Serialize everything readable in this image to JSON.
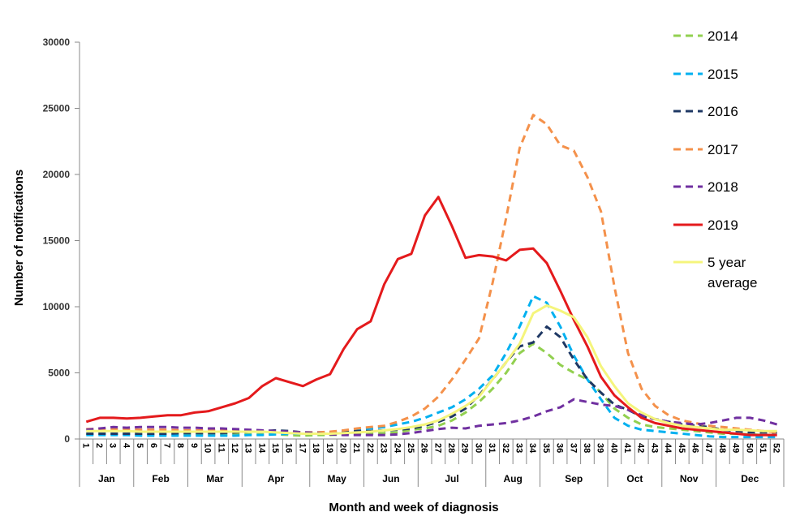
{
  "chart_data": {
    "type": "line",
    "title": "",
    "xlabel": "Month and week of diagnosis",
    "ylabel": "Number of notifications",
    "ylim": [
      0,
      30000
    ],
    "yticks": [
      0,
      5000,
      10000,
      15000,
      20000,
      25000,
      30000
    ],
    "weeks": [
      "1",
      "2",
      "3",
      "4",
      "5",
      "6",
      "7",
      "8",
      "9",
      "10",
      "11",
      "12",
      "13",
      "14",
      "15",
      "16",
      "17",
      "18",
      "19",
      "20",
      "21",
      "22",
      "23",
      "24",
      "25",
      "26",
      "27",
      "28",
      "29",
      "30",
      "31",
      "32",
      "33",
      "34",
      "35",
      "36",
      "37",
      "38",
      "39",
      "40",
      "41",
      "42",
      "43",
      "44",
      "45",
      "46",
      "47",
      "48",
      "49",
      "50",
      "51",
      "52"
    ],
    "months": [
      {
        "label": "Jan",
        "start": 1,
        "end": 4
      },
      {
        "label": "Feb",
        "start": 5,
        "end": 8
      },
      {
        "label": "Mar",
        "start": 9,
        "end": 12
      },
      {
        "label": "Apr",
        "start": 13,
        "end": 17
      },
      {
        "label": "May",
        "start": 18,
        "end": 21
      },
      {
        "label": "Jun",
        "start": 22,
        "end": 25
      },
      {
        "label": "Jul",
        "start": 26,
        "end": 30
      },
      {
        "label": "Aug",
        "start": 31,
        "end": 34
      },
      {
        "label": "Sep",
        "start": 35,
        "end": 39
      },
      {
        "label": "Oct",
        "start": 40,
        "end": 43
      },
      {
        "label": "Nov",
        "start": 44,
        "end": 47
      },
      {
        "label": "Dec",
        "start": 48,
        "end": 52
      }
    ],
    "series": [
      {
        "name": "2014",
        "color": "#92d050",
        "dash": true,
        "values": [
          400,
          400,
          400,
          400,
          350,
          350,
          350,
          350,
          350,
          350,
          350,
          350,
          350,
          350,
          350,
          300,
          250,
          300,
          300,
          350,
          400,
          400,
          450,
          500,
          700,
          800,
          1000,
          1400,
          2000,
          2800,
          3800,
          5000,
          6500,
          7200,
          6500,
          5600,
          5000,
          4500,
          3500,
          2300,
          1600,
          1100,
          900,
          800,
          700,
          600,
          500,
          400,
          400,
          350,
          300,
          300
        ]
      },
      {
        "name": "2015",
        "color": "#00b0f0",
        "dash": true,
        "values": [
          300,
          300,
          300,
          300,
          250,
          250,
          250,
          250,
          250,
          250,
          250,
          250,
          300,
          300,
          350,
          400,
          400,
          450,
          500,
          600,
          700,
          800,
          900,
          1100,
          1300,
          1600,
          2000,
          2400,
          3000,
          3800,
          4800,
          6500,
          8500,
          10800,
          10300,
          8500,
          6300,
          4500,
          3000,
          1600,
          1000,
          700,
          600,
          500,
          400,
          300,
          200,
          150,
          150,
          150,
          150,
          150
        ]
      },
      {
        "name": "2016",
        "color": "#1f3864",
        "dash": true,
        "values": [
          400,
          400,
          400,
          400,
          400,
          400,
          400,
          450,
          450,
          450,
          450,
          500,
          550,
          600,
          650,
          600,
          500,
          500,
          500,
          550,
          600,
          600,
          650,
          700,
          800,
          1000,
          1300,
          1700,
          2300,
          3300,
          4500,
          5800,
          7000,
          7300,
          8500,
          7700,
          6000,
          4500,
          3500,
          2600,
          2200,
          1700,
          1500,
          1300,
          1100,
          1000,
          900,
          700,
          600,
          500,
          500,
          500
        ]
      },
      {
        "name": "2017",
        "color": "#f4914b",
        "dash": true,
        "values": [
          750,
          750,
          750,
          700,
          700,
          700,
          700,
          650,
          650,
          650,
          650,
          600,
          600,
          600,
          550,
          550,
          500,
          500,
          550,
          650,
          800,
          900,
          1000,
          1300,
          1700,
          2300,
          3200,
          4500,
          6000,
          7600,
          11800,
          16700,
          22000,
          24500,
          23800,
          22200,
          21800,
          19800,
          17200,
          11500,
          6500,
          3800,
          2500,
          1800,
          1400,
          1200,
          1000,
          900,
          800,
          700,
          600,
          500
        ]
      },
      {
        "name": "2018",
        "color": "#7030a0",
        "dash": true,
        "values": [
          700,
          800,
          900,
          850,
          900,
          900,
          900,
          850,
          850,
          800,
          800,
          750,
          700,
          650,
          600,
          550,
          500,
          450,
          350,
          300,
          300,
          300,
          300,
          350,
          450,
          600,
          750,
          850,
          800,
          1000,
          1100,
          1200,
          1400,
          1700,
          2100,
          2400,
          3000,
          2800,
          2600,
          2500,
          2200,
          1800,
          1500,
          1300,
          1200,
          1100,
          1200,
          1400,
          1600,
          1600,
          1400,
          1100
        ]
      },
      {
        "name": "2019",
        "color": "#e41a1c",
        "dash": false,
        "values": [
          1300,
          1600,
          1600,
          1550,
          1600,
          1700,
          1800,
          1800,
          2000,
          2100,
          2400,
          2700,
          3100,
          4000,
          4600,
          4300,
          4000,
          4500,
          4900,
          6800,
          8300,
          8900,
          11700,
          13600,
          14000,
          16900,
          18300,
          16100,
          13700,
          13900,
          13800,
          13500,
          14300,
          14400,
          13300,
          11200,
          9000,
          7000,
          4700,
          3300,
          2400,
          1600,
          1200,
          1000,
          800,
          700,
          600,
          500,
          400,
          300,
          300,
          300
        ]
      },
      {
        "name": "5 year average",
        "color": "#f5f57c",
        "dash": false,
        "values": [
          600,
          600,
          600,
          600,
          550,
          550,
          550,
          550,
          550,
          550,
          550,
          550,
          550,
          550,
          500,
          450,
          400,
          400,
          400,
          450,
          500,
          550,
          650,
          750,
          900,
          1100,
          1400,
          1900,
          2500,
          3200,
          4500,
          5800,
          7200,
          9500,
          10100,
          9700,
          9200,
          7700,
          5500,
          4000,
          2700,
          2000,
          1500,
          1200,
          1000,
          900,
          800,
          700,
          700,
          650,
          600,
          600
        ]
      }
    ]
  }
}
